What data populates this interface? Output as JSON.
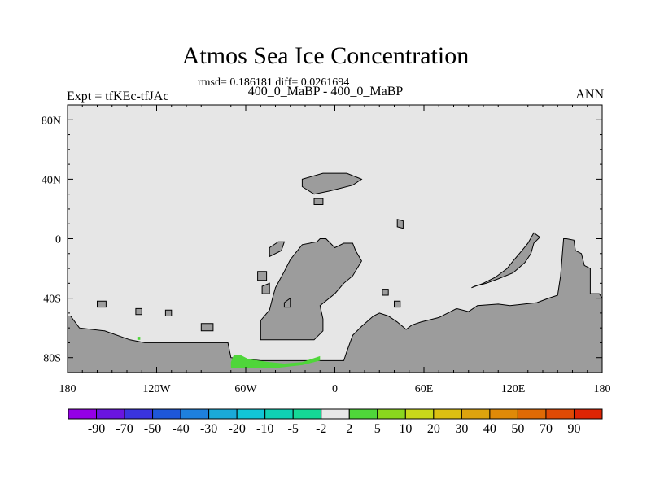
{
  "header": {
    "title": "Atmos Sea Ice Concentration",
    "stats": "rmsd= 0.186181 diff= 0.0261694",
    "subtitle": "400_0_MaBP - 400_0_MaBP",
    "left_label": "Expt = tfKEc-tfJAc",
    "right_label": "ANN"
  },
  "chart_data": {
    "type": "heatmap",
    "title": "Atmos Sea Ice Concentration",
    "xlim": [
      -180,
      180
    ],
    "ylim": [
      -90,
      90
    ],
    "x_ticks": [
      {
        "value": -180,
        "label": "180"
      },
      {
        "value": -120,
        "label": "120W"
      },
      {
        "value": -60,
        "label": "60W"
      },
      {
        "value": 0,
        "label": "0"
      },
      {
        "value": 60,
        "label": "60E"
      },
      {
        "value": 120,
        "label": "120E"
      },
      {
        "value": 180,
        "label": "180"
      }
    ],
    "y_ticks": [
      {
        "value": 80,
        "label": "80N"
      },
      {
        "value": 40,
        "label": "40N"
      },
      {
        "value": 0,
        "label": "0"
      },
      {
        "value": -40,
        "label": "40S"
      },
      {
        "value": -80,
        "label": "80S"
      }
    ],
    "colors": {
      "background": "#e6e6e6",
      "land": "#9c9c9c",
      "positive_anomaly": "#4fd63a"
    },
    "land_polygons": [
      [
        [
          -180,
          -90
        ],
        [
          180,
          -90
        ],
        [
          180,
          -40
        ],
        [
          178,
          -37
        ],
        [
          172,
          -37
        ],
        [
          172,
          -20
        ],
        [
          168,
          -18
        ],
        [
          166,
          -10
        ],
        [
          162,
          -8
        ],
        [
          161,
          -1
        ],
        [
          156,
          0
        ],
        [
          154,
          0
        ],
        [
          152,
          -25
        ],
        [
          150,
          -38
        ],
        [
          144,
          -40
        ],
        [
          136,
          -43
        ],
        [
          118,
          -45
        ],
        [
          110,
          -44
        ],
        [
          96,
          -45
        ],
        [
          90,
          -49
        ],
        [
          82,
          -47
        ],
        [
          70,
          -53
        ],
        [
          58,
          -56
        ],
        [
          52,
          -58
        ],
        [
          48,
          -61
        ],
        [
          42,
          -56
        ],
        [
          36,
          -52
        ],
        [
          30,
          -50
        ],
        [
          26,
          -52
        ],
        [
          18,
          -59
        ],
        [
          12,
          -65
        ],
        [
          8,
          -76
        ],
        [
          6,
          -82
        ],
        [
          -50,
          -82
        ],
        [
          -70,
          -80
        ],
        [
          -72,
          -70
        ],
        [
          -128,
          -70
        ],
        [
          -138,
          -68
        ],
        [
          -155,
          -62
        ],
        [
          -172,
          -60
        ],
        [
          -178,
          -52
        ],
        [
          -180,
          -52
        ]
      ],
      [
        [
          -40,
          -33
        ],
        [
          -34,
          -22
        ],
        [
          -30,
          -14
        ],
        [
          -22,
          -4
        ],
        [
          -12,
          -2
        ],
        [
          -10,
          0
        ],
        [
          -6,
          0
        ],
        [
          0,
          -6
        ],
        [
          6,
          -3
        ],
        [
          12,
          -3
        ],
        [
          14,
          -8
        ],
        [
          18,
          -15
        ],
        [
          12,
          -25
        ],
        [
          6,
          -30
        ],
        [
          0,
          -37
        ],
        [
          -10,
          -45
        ],
        [
          -8,
          -54
        ],
        [
          -8,
          -62
        ],
        [
          -14,
          -68
        ],
        [
          -50,
          -68
        ],
        [
          -50,
          -55
        ],
        [
          -44,
          -48
        ],
        [
          -42,
          -40
        ]
      ],
      [
        [
          -22,
          40
        ],
        [
          -8,
          44
        ],
        [
          8,
          44
        ],
        [
          18,
          40
        ],
        [
          12,
          36
        ],
        [
          4,
          34
        ],
        [
          -4,
          32
        ],
        [
          -14,
          30
        ],
        [
          -22,
          35
        ]
      ],
      [
        [
          -14,
          27
        ],
        [
          -8,
          27
        ],
        [
          -8,
          23
        ],
        [
          -14,
          23
        ]
      ],
      [
        [
          42,
          13
        ],
        [
          46,
          12
        ],
        [
          46,
          7
        ],
        [
          42,
          8
        ]
      ],
      [
        [
          92,
          -33
        ],
        [
          100,
          -30
        ],
        [
          108,
          -26
        ],
        [
          116,
          -20
        ],
        [
          120,
          -15
        ],
        [
          126,
          -8
        ],
        [
          130,
          -3
        ],
        [
          134,
          4
        ],
        [
          138,
          1
        ],
        [
          134,
          -3
        ],
        [
          132,
          -10
        ],
        [
          128,
          -16
        ],
        [
          120,
          -23
        ],
        [
          110,
          -27
        ],
        [
          102,
          -30
        ],
        [
          94,
          -32
        ]
      ],
      [
        [
          -160,
          -42
        ],
        [
          -154,
          -42
        ],
        [
          -154,
          -46
        ],
        [
          -160,
          -46
        ]
      ],
      [
        [
          -52,
          -22
        ],
        [
          -46,
          -22
        ],
        [
          -46,
          -28
        ],
        [
          -52,
          -28
        ]
      ],
      [
        [
          -49,
          -32
        ],
        [
          -44,
          -30
        ],
        [
          -44,
          -37
        ],
        [
          -49,
          -37
        ]
      ],
      [
        [
          -90,
          -57
        ],
        [
          -82,
          -57
        ],
        [
          -82,
          -62
        ],
        [
          -90,
          -62
        ]
      ],
      [
        [
          -134,
          -47
        ],
        [
          -130,
          -47
        ],
        [
          -130,
          -51
        ],
        [
          -134,
          -51
        ]
      ],
      [
        [
          -114,
          -48
        ],
        [
          -110,
          -48
        ],
        [
          -110,
          -52
        ],
        [
          -114,
          -52
        ]
      ],
      [
        [
          -34,
          -43
        ],
        [
          -30,
          -40
        ],
        [
          -30,
          -46
        ],
        [
          -34,
          -46
        ]
      ],
      [
        [
          32,
          -34
        ],
        [
          36,
          -34
        ],
        [
          36,
          -38
        ],
        [
          32,
          -38
        ]
      ],
      [
        [
          -44,
          -12
        ],
        [
          -36,
          -8
        ],
        [
          -34,
          -2
        ],
        [
          -38,
          -2
        ],
        [
          -44,
          -6
        ]
      ],
      [
        [
          40,
          -42
        ],
        [
          44,
          -42
        ],
        [
          44,
          -46
        ],
        [
          40,
          -46
        ]
      ]
    ],
    "anomaly_polygons": [
      [
        [
          -70,
          -83
        ],
        [
          -68,
          -78
        ],
        [
          -64,
          -78
        ],
        [
          -58,
          -81
        ],
        [
          -44,
          -83
        ],
        [
          -34,
          -84
        ],
        [
          -22,
          -83
        ],
        [
          -10,
          -79
        ],
        [
          -10,
          -82
        ],
        [
          -22,
          -85
        ],
        [
          -40,
          -87
        ],
        [
          -70,
          -87
        ]
      ],
      [
        [
          -133,
          -66
        ],
        [
          -131,
          -66
        ],
        [
          -131,
          -68
        ],
        [
          -133,
          -68
        ]
      ]
    ],
    "colorbar": {
      "labels": [
        "-90",
        "-70",
        "-50",
        "-40",
        "-30",
        "-20",
        "-10",
        "-5",
        "-2",
        "2",
        "5",
        "10",
        "20",
        "30",
        "40",
        "50",
        "70",
        "90"
      ],
      "colors": [
        "#9400e6",
        "#6a15e0",
        "#3a34df",
        "#1e57d9",
        "#1e80dd",
        "#1aaad8",
        "#11c6d6",
        "#10d1b4",
        "#15d896",
        "#e8e8e8",
        "#4fd63a",
        "#8ad61e",
        "#c8d81a",
        "#dcc012",
        "#dda30e",
        "#e08a08",
        "#e06a05",
        "#e04a05",
        "#dd2404"
      ]
    }
  }
}
